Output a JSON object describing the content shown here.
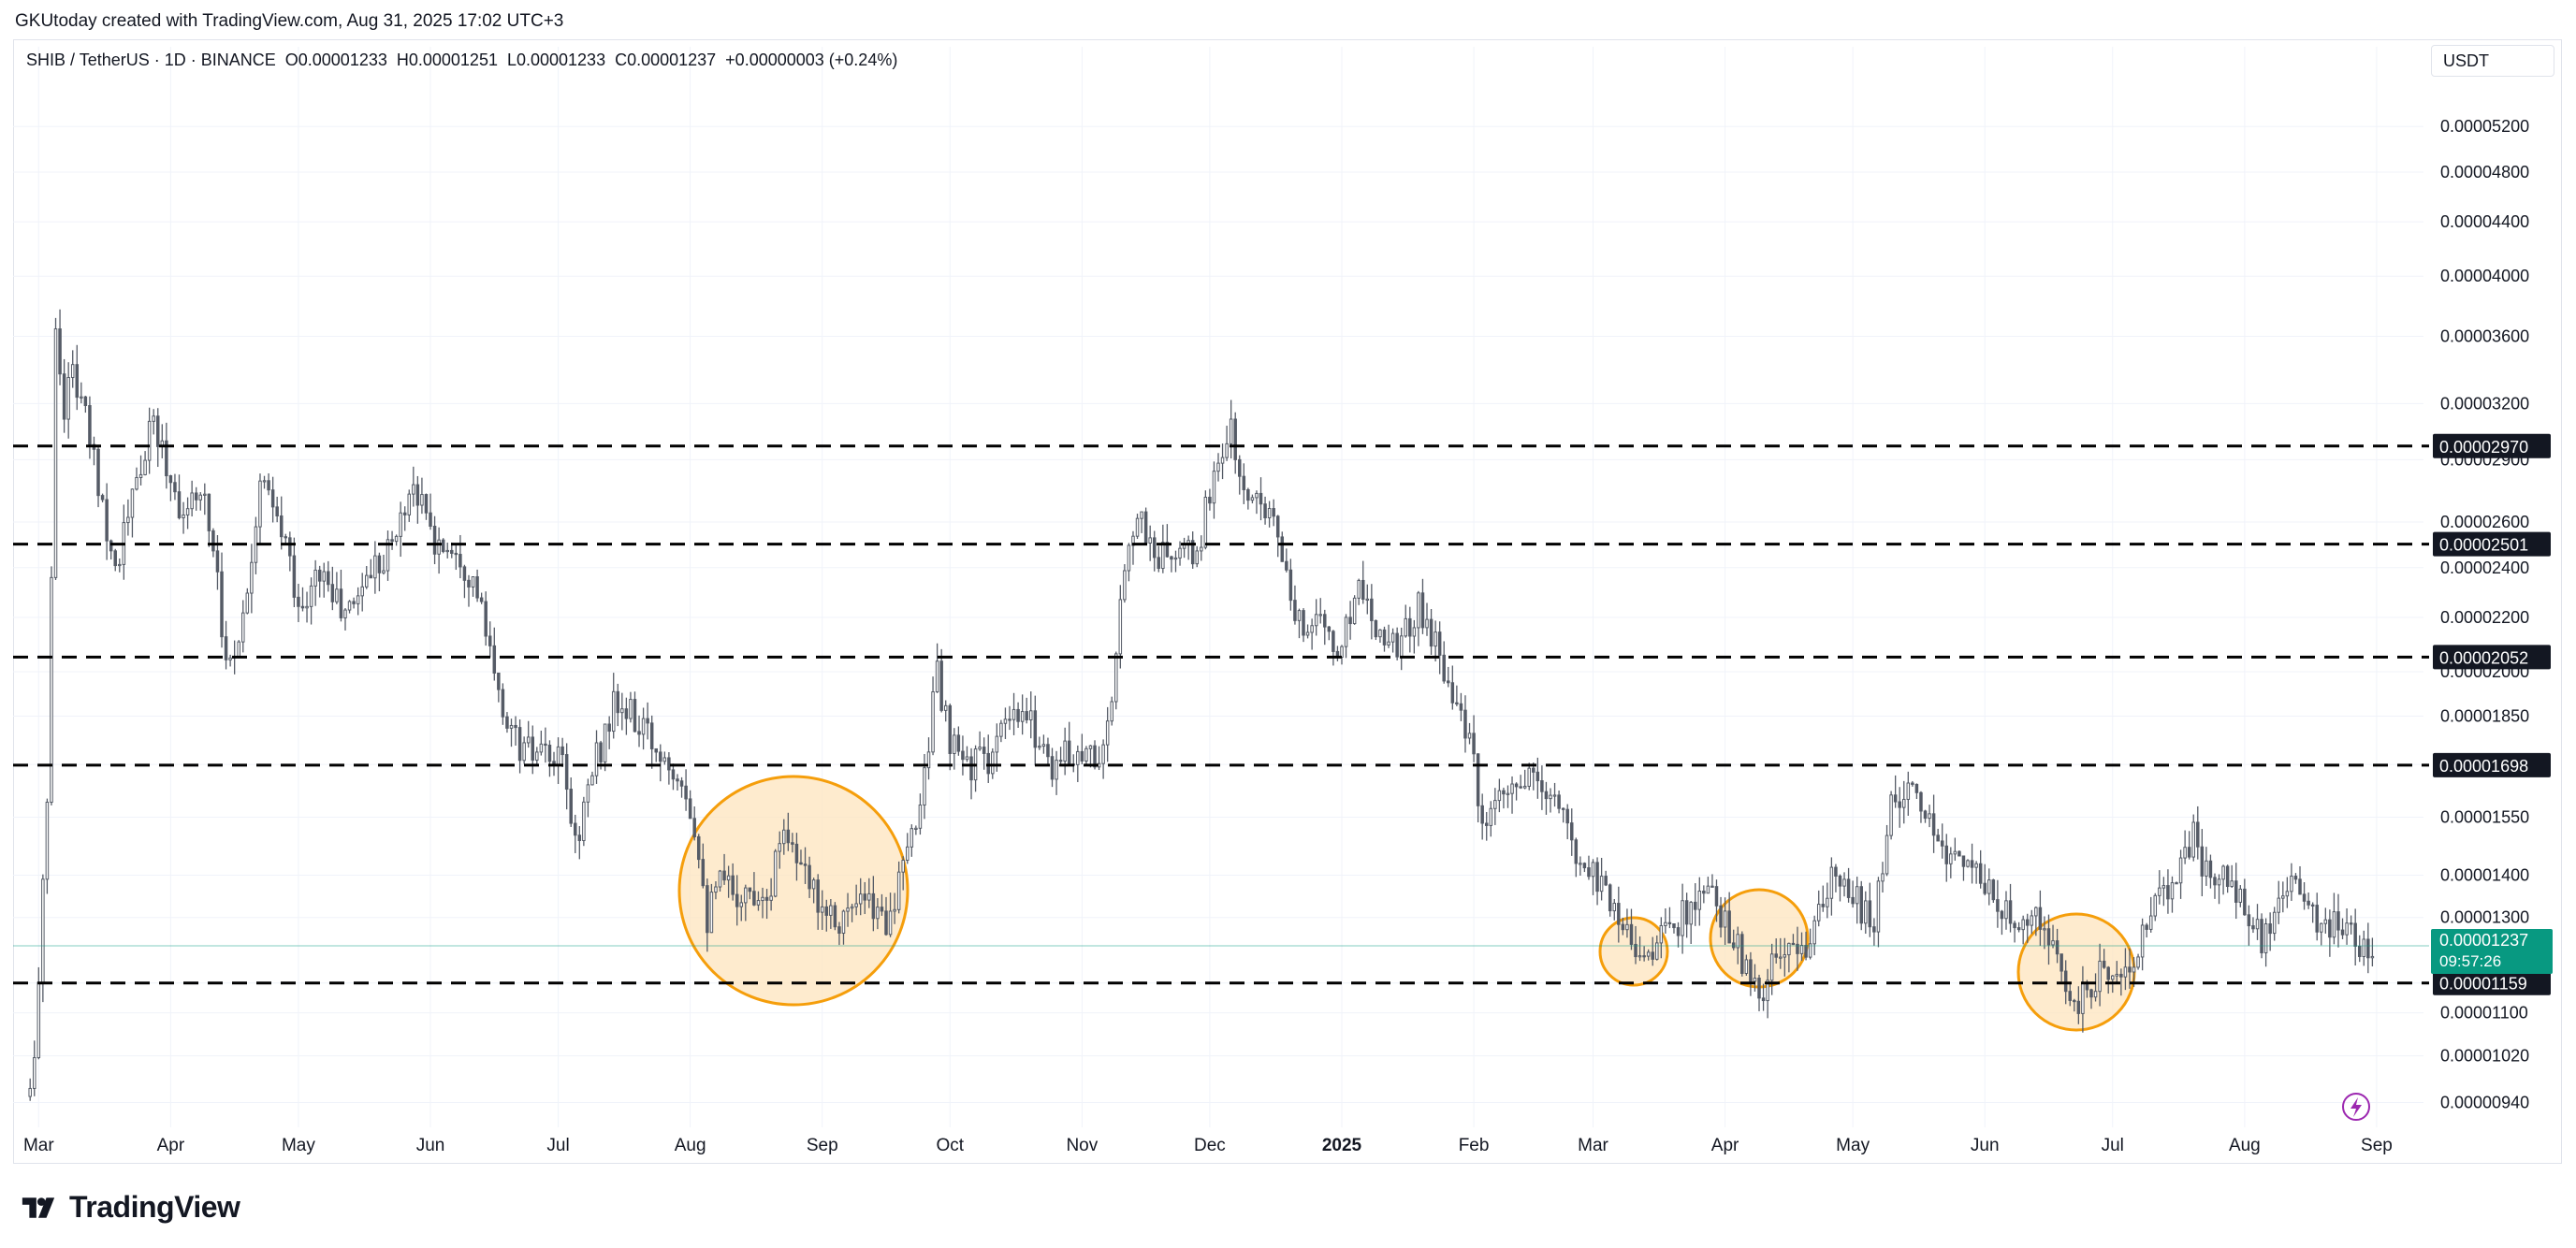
{
  "header": {
    "credit": "GKUtoday created with TradingView.com, Aug 31, 2025 17:02 UTC+3"
  },
  "legend": {
    "symbol": "SHIB / TetherUS · 1D · BINANCE",
    "ohlc": "O0.00001233  H0.00001251  L0.00001233  C0.00001237  +0.00000003 (+0.24%)"
  },
  "currency_label": "USDT",
  "footer": {
    "brand": "TradingView"
  },
  "colors": {
    "up": "#089981",
    "down": "#f23645",
    "candle_ink": "#555b66",
    "circle_stroke": "#f59e0b",
    "circle_fill": "#fde4bd",
    "price_tag": "#089981"
  },
  "chart_data": {
    "type": "candlestick",
    "y_scale": "log",
    "ylim": [
      9e-06,
      5.6e-06
    ],
    "y_ticks": [
      "0.00005200",
      "0.00004800",
      "0.00004400",
      "0.00004000",
      "0.00003600",
      "0.00003200",
      "0.00002900",
      "0.00002600",
      "0.00002400",
      "0.00002200",
      "0.00002000",
      "0.00001850",
      "0.00001700",
      "0.00001550",
      "0.00001400",
      "0.00001300",
      "0.00001159",
      "0.00001100",
      "0.00001020",
      "0.00000940"
    ],
    "x_ticks": [
      "Mar",
      "Apr",
      "May",
      "Jun",
      "Jul",
      "Aug",
      "Sep",
      "Oct",
      "Nov",
      "Dec",
      "2025",
      "Feb",
      "Mar",
      "Apr",
      "May",
      "Jun",
      "Jul",
      "Aug",
      "Sep"
    ],
    "x_tick_bold": "2025",
    "levels": [
      "0.00002970",
      "0.00002501",
      "0.00002052",
      "0.00001698",
      "0.00001159"
    ],
    "current_price": {
      "value": "0.00001237",
      "countdown": "09:57:26"
    },
    "price_path": [
      [
        "2024-02-28",
        9.5e-06
      ],
      [
        "2024-03-01",
        1.15e-05
      ],
      [
        "2024-03-03",
        1.6e-05
      ],
      [
        "2024-03-05",
        3.6e-05
      ],
      [
        "2024-03-07",
        3.2e-05
      ],
      [
        "2024-03-09",
        3.4e-05
      ],
      [
        "2024-03-12",
        3.1e-05
      ],
      [
        "2024-03-15",
        2.8e-05
      ],
      [
        "2024-03-19",
        2.4e-05
      ],
      [
        "2024-03-23",
        2.7e-05
      ],
      [
        "2024-03-28",
        3.1e-05
      ],
      [
        "2024-04-01",
        2.8e-05
      ],
      [
        "2024-04-05",
        2.6e-05
      ],
      [
        "2024-04-08",
        2.8e-05
      ],
      [
        "2024-04-12",
        2.4e-05
      ],
      [
        "2024-04-14",
        2e-05
      ],
      [
        "2024-04-18",
        2.2e-05
      ],
      [
        "2024-04-22",
        2.8e-05
      ],
      [
        "2024-04-28",
        2.5e-05
      ],
      [
        "2024-05-02",
        2.2e-05
      ],
      [
        "2024-05-06",
        2.4e-05
      ],
      [
        "2024-05-12",
        2.2e-05
      ],
      [
        "2024-05-18",
        2.4e-05
      ],
      [
        "2024-05-23",
        2.5e-05
      ],
      [
        "2024-05-28",
        2.8e-05
      ],
      [
        "2024-06-02",
        2.5e-05
      ],
      [
        "2024-06-07",
        2.5e-05
      ],
      [
        "2024-06-12",
        2.3e-05
      ],
      [
        "2024-06-17",
        1.9e-05
      ],
      [
        "2024-06-22",
        1.75e-05
      ],
      [
        "2024-06-27",
        1.72e-05
      ],
      [
        "2024-07-02",
        1.7e-05
      ],
      [
        "2024-07-05",
        1.48e-05
      ],
      [
        "2024-07-09",
        1.68e-05
      ],
      [
        "2024-07-14",
        1.88e-05
      ],
      [
        "2024-07-18",
        1.85e-05
      ],
      [
        "2024-07-24",
        1.75e-05
      ],
      [
        "2024-07-30",
        1.68e-05
      ],
      [
        "2024-08-03",
        1.48e-05
      ],
      [
        "2024-08-05",
        1.3e-05
      ],
      [
        "2024-08-08",
        1.38e-05
      ],
      [
        "2024-08-14",
        1.35e-05
      ],
      [
        "2024-08-20",
        1.38e-05
      ],
      [
        "2024-08-23",
        1.55e-05
      ],
      [
        "2024-08-27",
        1.4e-05
      ],
      [
        "2024-08-31",
        1.35e-05
      ],
      [
        "2024-09-05",
        1.3e-05
      ],
      [
        "2024-09-11",
        1.33e-05
      ],
      [
        "2024-09-16",
        1.3e-05
      ],
      [
        "2024-09-20",
        1.4e-05
      ],
      [
        "2024-09-24",
        1.6e-05
      ],
      [
        "2024-09-28",
        2e-05
      ],
      [
        "2024-10-01",
        1.75e-05
      ],
      [
        "2024-10-05",
        1.7e-05
      ],
      [
        "2024-10-10",
        1.72e-05
      ],
      [
        "2024-10-15",
        1.83e-05
      ],
      [
        "2024-10-20",
        1.83e-05
      ],
      [
        "2024-10-25",
        1.7e-05
      ],
      [
        "2024-10-31",
        1.75e-05
      ],
      [
        "2024-11-05",
        1.72e-05
      ],
      [
        "2024-11-08",
        1.85e-05
      ],
      [
        "2024-11-11",
        2.45e-05
      ],
      [
        "2024-11-14",
        2.65e-05
      ],
      [
        "2024-11-18",
        2.45e-05
      ],
      [
        "2024-11-23",
        2.45e-05
      ],
      [
        "2024-11-28",
        2.45e-05
      ],
      [
        "2024-12-02",
        2.85e-05
      ],
      [
        "2024-12-06",
        3.05e-05
      ],
      [
        "2024-12-09",
        2.7e-05
      ],
      [
        "2024-12-13",
        2.75e-05
      ],
      [
        "2024-12-17",
        2.55e-05
      ],
      [
        "2024-12-21",
        2.15e-05
      ],
      [
        "2024-12-26",
        2.22e-05
      ],
      [
        "2024-12-31",
        2.05e-05
      ],
      [
        "2025-01-05",
        2.35e-05
      ],
      [
        "2025-01-10",
        2.15e-05
      ],
      [
        "2025-01-15",
        2.1e-05
      ],
      [
        "2025-01-19",
        2.25e-05
      ],
      [
        "2025-01-23",
        2.1e-05
      ],
      [
        "2025-01-27",
        1.95e-05
      ],
      [
        "2025-02-01",
        1.7e-05
      ],
      [
        "2025-02-03",
        1.5e-05
      ],
      [
        "2025-02-08",
        1.6e-05
      ],
      [
        "2025-02-14",
        1.65e-05
      ],
      [
        "2025-02-20",
        1.6e-05
      ],
      [
        "2025-02-25",
        1.45e-05
      ],
      [
        "2025-03-02",
        1.4e-05
      ],
      [
        "2025-03-06",
        1.33e-05
      ],
      [
        "2025-03-10",
        1.25e-05
      ],
      [
        "2025-03-14",
        1.22e-05
      ],
      [
        "2025-03-19",
        1.28e-05
      ],
      [
        "2025-03-24",
        1.32e-05
      ],
      [
        "2025-03-28",
        1.35e-05
      ],
      [
        "2025-04-02",
        1.28e-05
      ],
      [
        "2025-04-06",
        1.18e-05
      ],
      [
        "2025-04-09",
        1.12e-05
      ],
      [
        "2025-04-13",
        1.21e-05
      ],
      [
        "2025-04-18",
        1.22e-05
      ],
      [
        "2025-04-22",
        1.27e-05
      ],
      [
        "2025-04-26",
        1.38e-05
      ],
      [
        "2025-05-01",
        1.35e-05
      ],
      [
        "2025-05-06",
        1.28e-05
      ],
      [
        "2025-05-10",
        1.6e-05
      ],
      [
        "2025-05-14",
        1.62e-05
      ],
      [
        "2025-05-19",
        1.52e-05
      ],
      [
        "2025-05-24",
        1.45e-05
      ],
      [
        "2025-05-28",
        1.45e-05
      ],
      [
        "2025-06-02",
        1.35e-05
      ],
      [
        "2025-06-06",
        1.3e-05
      ],
      [
        "2025-06-11",
        1.32e-05
      ],
      [
        "2025-06-15",
        1.25e-05
      ],
      [
        "2025-06-19",
        1.2e-05
      ],
      [
        "2025-06-22",
        1.1e-05
      ],
      [
        "2025-06-26",
        1.15e-05
      ],
      [
        "2025-07-01",
        1.2e-05
      ],
      [
        "2025-07-05",
        1.18e-05
      ],
      [
        "2025-07-10",
        1.3e-05
      ],
      [
        "2025-07-15",
        1.4e-05
      ],
      [
        "2025-07-20",
        1.5e-05
      ],
      [
        "2025-07-24",
        1.38e-05
      ],
      [
        "2025-07-28",
        1.4e-05
      ],
      [
        "2025-08-02",
        1.28e-05
      ],
      [
        "2025-08-06",
        1.25e-05
      ],
      [
        "2025-08-10",
        1.35e-05
      ],
      [
        "2025-08-14",
        1.38e-05
      ],
      [
        "2025-08-19",
        1.25e-05
      ],
      [
        "2025-08-23",
        1.3e-05
      ],
      [
        "2025-08-27",
        1.25e-05
      ],
      [
        "2025-08-31",
        1.237e-05
      ]
    ]
  }
}
